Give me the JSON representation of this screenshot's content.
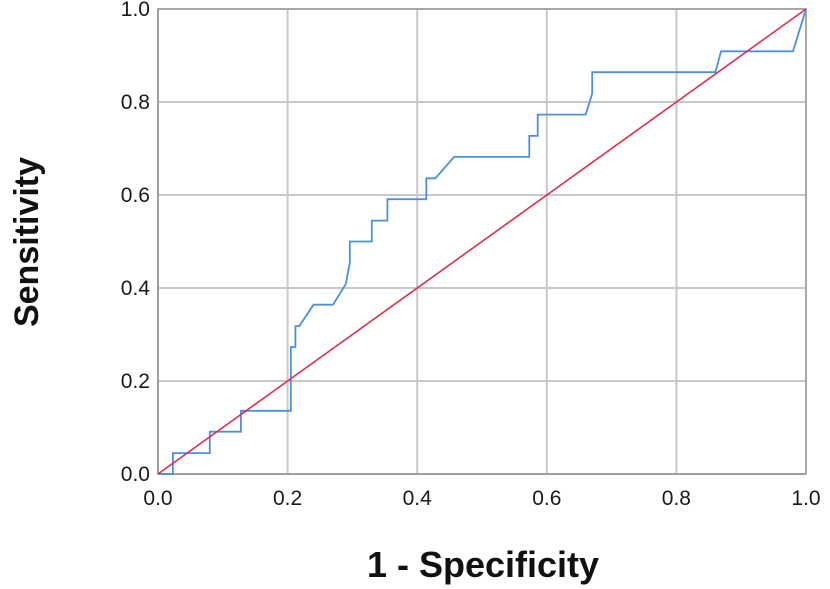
{
  "chart_data": {
    "type": "line",
    "title": "",
    "xlabel": "1 - Specificity",
    "ylabel": "Sensitivity",
    "xlim": [
      0.0,
      1.0
    ],
    "ylim": [
      0.0,
      1.0
    ],
    "x_ticks": [
      0.0,
      0.2,
      0.4,
      0.6,
      0.8,
      1.0
    ],
    "y_ticks": [
      0.0,
      0.2,
      0.4,
      0.6,
      0.8,
      1.0
    ],
    "x_tick_labels": [
      "0.0",
      "0.2",
      "0.4",
      "0.6",
      "0.8",
      "1.0"
    ],
    "y_tick_labels": [
      "0.0",
      "0.2",
      "0.4",
      "0.6",
      "0.8",
      "1.0"
    ],
    "grid": true,
    "legend": "none",
    "series": [
      {
        "color": "#4a90e2",
        "x": [
          0.0,
          0.023,
          0.023,
          0.08,
          0.08,
          0.128,
          0.128,
          0.205,
          0.205,
          0.212,
          0.212,
          0.218,
          0.24,
          0.27,
          0.29,
          0.296,
          0.296,
          0.33,
          0.33,
          0.347,
          0.347,
          0.354,
          0.354,
          0.406,
          0.406,
          0.414,
          0.414,
          0.428,
          0.457,
          0.573,
          0.573,
          0.586,
          0.586,
          0.59,
          0.59,
          0.635,
          0.66,
          0.67,
          0.67,
          0.86,
          0.869,
          0.869,
          0.98,
          1.0
        ],
        "y": [
          0.0,
          0.0,
          0.045,
          0.045,
          0.091,
          0.091,
          0.136,
          0.136,
          0.273,
          0.273,
          0.318,
          0.318,
          0.364,
          0.364,
          0.409,
          0.455,
          0.5,
          0.5,
          0.545,
          0.545,
          0.545,
          0.545,
          0.591,
          0.591,
          0.591,
          0.591,
          0.636,
          0.636,
          0.682,
          0.682,
          0.727,
          0.727,
          0.773,
          0.773,
          0.773,
          0.773,
          0.773,
          0.818,
          0.864,
          0.864,
          0.909,
          0.909,
          0.909,
          1.0
        ]
      },
      {
        "color": "#e0304e",
        "x": [
          0.0,
          1.0
        ],
        "y": [
          0.0,
          1.0
        ]
      }
    ],
    "colors": {
      "grid": "#c8c8c8",
      "axis": "#9e9e9e",
      "roc": "#4a90e2",
      "reference": "#e0304e"
    }
  }
}
